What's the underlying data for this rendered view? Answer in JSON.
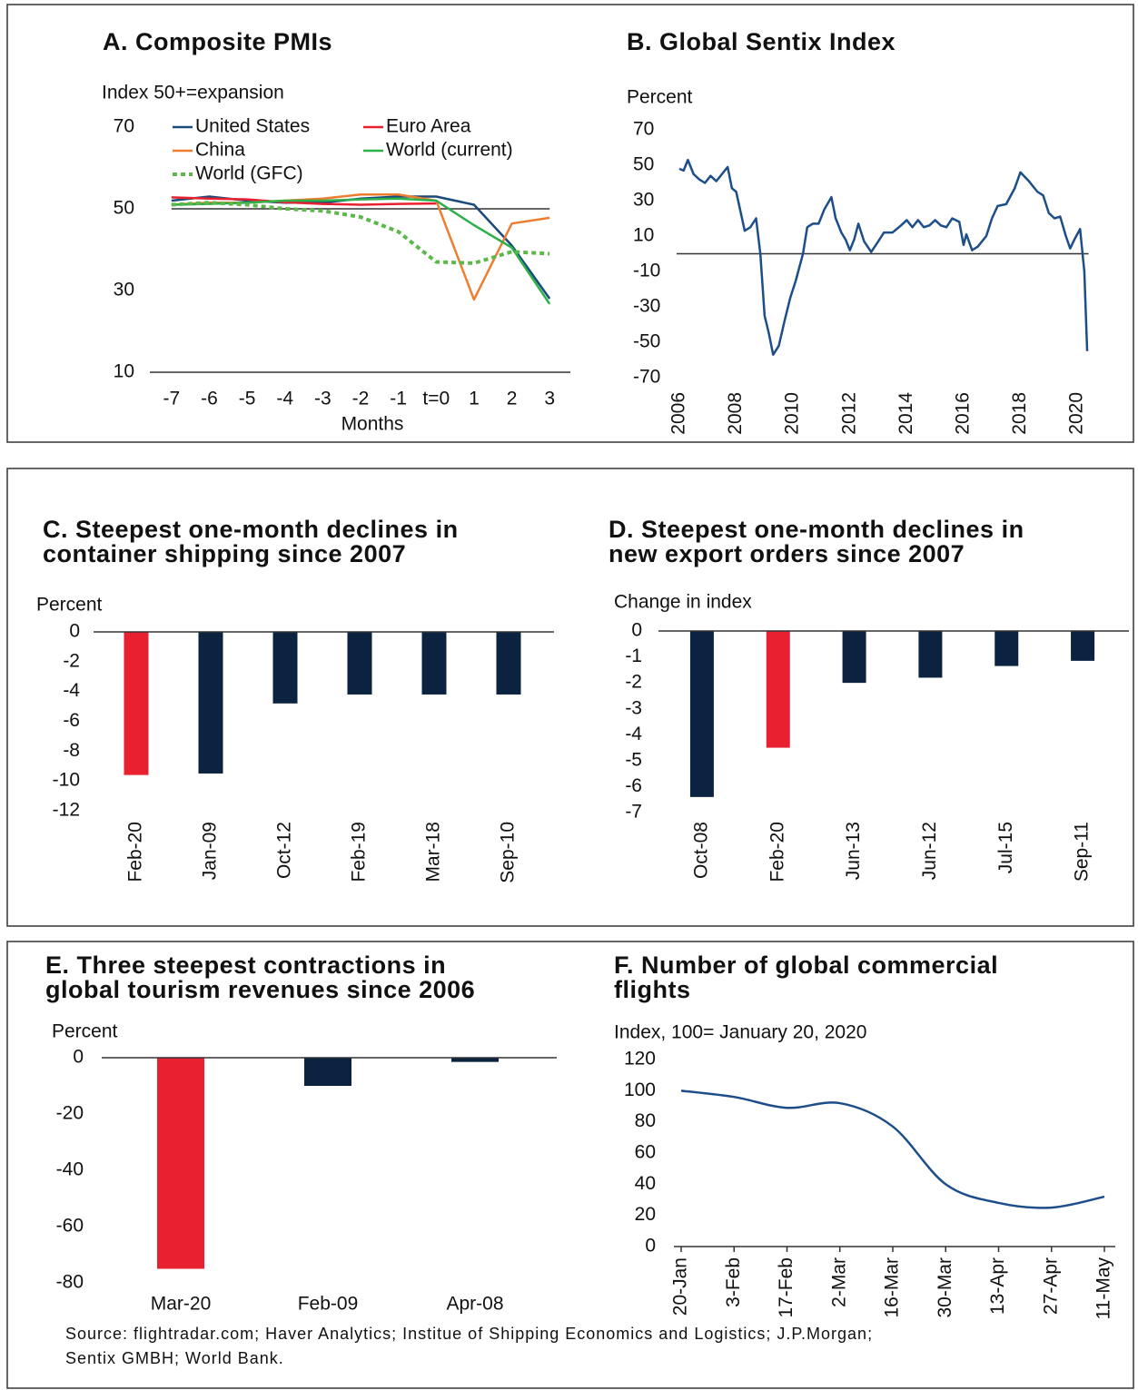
{
  "chart_data": [
    {
      "type": "line",
      "title": [
        "A. Composite PMIs"
      ],
      "y_label": "Index 50+=expansion",
      "x_label": "Months",
      "x": [
        -7,
        -6,
        -5,
        -4,
        -3,
        -2,
        -1,
        0,
        1,
        2,
        3
      ],
      "xlim": [
        -7.5,
        3.5
      ],
      "xticks": [
        -7,
        -6,
        -5,
        -4,
        -3,
        -2,
        -1,
        {
          "value": 0,
          "label": "t=0"
        },
        1,
        2,
        3
      ],
      "ylim": [
        10,
        70
      ],
      "yticks": [
        10,
        30,
        50,
        70
      ],
      "reference_line": 50,
      "series": [
        {
          "name": "United States",
          "color": "#1a4a7a",
          "values": [
            52,
            53,
            52,
            51.5,
            51.5,
            52.5,
            53,
            53,
            51,
            41,
            28
          ]
        },
        {
          "name": "Euro Area",
          "color": "#e8202f",
          "values": [
            52.8,
            52.5,
            52.3,
            51.6,
            51.2,
            51,
            51.2,
            51.3,
            null,
            null,
            null
          ]
        },
        {
          "name": "China",
          "color": "#ed7d31",
          "values": [
            51,
            51.5,
            51.5,
            52,
            52.5,
            53.5,
            53.5,
            52,
            27.8,
            46.4,
            47.8
          ]
        },
        {
          "name": "World (current)",
          "color": "#2db04a",
          "values": [
            51,
            51.2,
            51.5,
            52,
            52,
            52.3,
            52.5,
            52,
            46,
            40.5,
            26.7
          ]
        },
        {
          "name": "World (GFC)",
          "color": "#5cb84a",
          "style": "dotted",
          "values": [
            51,
            51.5,
            51,
            50,
            49.5,
            48,
            44.4,
            37,
            36.7,
            39.5,
            39
          ]
        }
      ]
    },
    {
      "type": "line",
      "title": [
        "B. Global Sentix Index"
      ],
      "y_label": "Percent",
      "x": [
        2006.0,
        2006.15,
        2006.3,
        2006.5,
        2006.7,
        2006.9,
        2007.1,
        2007.3,
        2007.5,
        2007.7,
        2007.85,
        2008.0,
        2008.15,
        2008.3,
        2008.5,
        2008.7,
        2008.85,
        2009.0,
        2009.15,
        2009.3,
        2009.5,
        2009.7,
        2009.9,
        2010.1,
        2010.35,
        2010.5,
        2010.7,
        2010.9,
        2011.1,
        2011.35,
        2011.5,
        2011.7,
        2011.85,
        2012.0,
        2012.15,
        2012.3,
        2012.5,
        2012.75,
        2013.0,
        2013.2,
        2013.5,
        2013.8,
        2014.0,
        2014.2,
        2014.4,
        2014.6,
        2014.8,
        2015.0,
        2015.2,
        2015.4,
        2015.6,
        2015.85,
        2016.0,
        2016.1,
        2016.3,
        2016.5,
        2016.8,
        2017.0,
        2017.2,
        2017.5,
        2017.8,
        2018.0,
        2018.3,
        2018.6,
        2018.8,
        2019.0,
        2019.2,
        2019.4,
        2019.6,
        2019.75,
        2019.9,
        2020.1,
        2020.25,
        2020.35
      ],
      "values": [
        48,
        47,
        53,
        45,
        42,
        40,
        44,
        41,
        45,
        49,
        37,
        35,
        24,
        13,
        15,
        20,
        0,
        -35,
        -45,
        -57,
        -52,
        -38,
        -25,
        -15,
        0,
        15,
        17,
        17,
        25,
        32,
        20,
        12,
        8,
        2,
        8,
        17,
        7,
        1,
        7,
        12,
        12,
        16,
        19,
        15,
        19,
        15,
        16,
        19,
        16,
        15,
        20,
        18,
        5,
        11,
        2,
        4,
        10,
        20,
        27,
        28,
        37,
        46,
        41,
        35,
        33,
        23,
        20,
        21,
        10,
        3,
        8,
        14,
        -10,
        -55
      ],
      "color": "#1d4e89",
      "xlim": [
        2006,
        2020.4
      ],
      "xticks": [
        2006,
        2008,
        2010,
        2012,
        2014,
        2016,
        2018,
        2020
      ],
      "ylim": [
        -70,
        70
      ],
      "yticks": [
        70,
        50,
        30,
        10,
        -10,
        -30,
        -50,
        -70
      ],
      "reference_line": 0
    },
    {
      "type": "bar",
      "title": [
        "C. Steepest one-month declines in",
        "container shipping since 2007"
      ],
      "y_label": "Percent",
      "categories": [
        "Feb-20",
        "Jan-09",
        "Oct-12",
        "Feb-19",
        "Mar-18",
        "Sep-10"
      ],
      "values": [
        -9.6,
        -9.5,
        -4.8,
        -4.2,
        -4.2,
        -4.2
      ],
      "colors": [
        "#e8202f",
        "#0b2341",
        "#0b2341",
        "#0b2341",
        "#0b2341",
        "#0b2341"
      ],
      "ylim": [
        -12,
        0
      ],
      "yticks": [
        0,
        -2,
        -4,
        -6,
        -8,
        -10,
        -12
      ]
    },
    {
      "type": "bar",
      "title": [
        "D. Steepest one-month declines in",
        "new export orders since 2007"
      ],
      "y_label": "Change in index",
      "categories": [
        "Oct-08",
        "Feb-20",
        "Jun-13",
        "Jun-12",
        "Jul-15",
        "Sep-11"
      ],
      "values": [
        -6.4,
        -4.5,
        -2.0,
        -1.8,
        -1.35,
        -1.15
      ],
      "colors": [
        "#0b2341",
        "#e8202f",
        "#0b2341",
        "#0b2341",
        "#0b2341",
        "#0b2341"
      ],
      "ylim": [
        -7,
        0
      ],
      "yticks": [
        0,
        -1,
        -2,
        -3,
        -4,
        -5,
        -6,
        -7
      ]
    },
    {
      "type": "bar",
      "title": [
        "E. Three steepest contractions in",
        "global tourism revenues since 2006"
      ],
      "y_label": "Percent",
      "categories": [
        "Mar-20",
        "Feb-09",
        "Apr-08"
      ],
      "values": [
        -75,
        -10,
        -1.5
      ],
      "colors": [
        "#e8202f",
        "#0b2341",
        "#0b2341"
      ],
      "ylim": [
        -80,
        0
      ],
      "yticks": [
        0,
        -20,
        -40,
        -60,
        -80
      ]
    },
    {
      "type": "line",
      "title": [
        "F. Number of global commercial",
        "flights"
      ],
      "y_label": "Index, 100= January 20, 2020",
      "categories": [
        "20-Jan",
        "3-Feb",
        "17-Feb",
        "2-Mar",
        "16-Mar",
        "30-Mar",
        "13-Apr",
        "27-Apr",
        "11-May"
      ],
      "values": [
        100,
        96,
        89,
        92,
        77,
        40,
        28,
        25,
        32
      ],
      "color": "#1d4e89",
      "smooth": true,
      "ylim": [
        0,
        120
      ],
      "yticks": [
        0,
        20,
        40,
        60,
        80,
        100,
        120
      ]
    }
  ],
  "source": [
    "Source: flightradar.com; Haver Analytics; Institue of Shipping Economics and Logistics; J.P.Morgan;",
    "Sentix GMBH; World Bank."
  ]
}
